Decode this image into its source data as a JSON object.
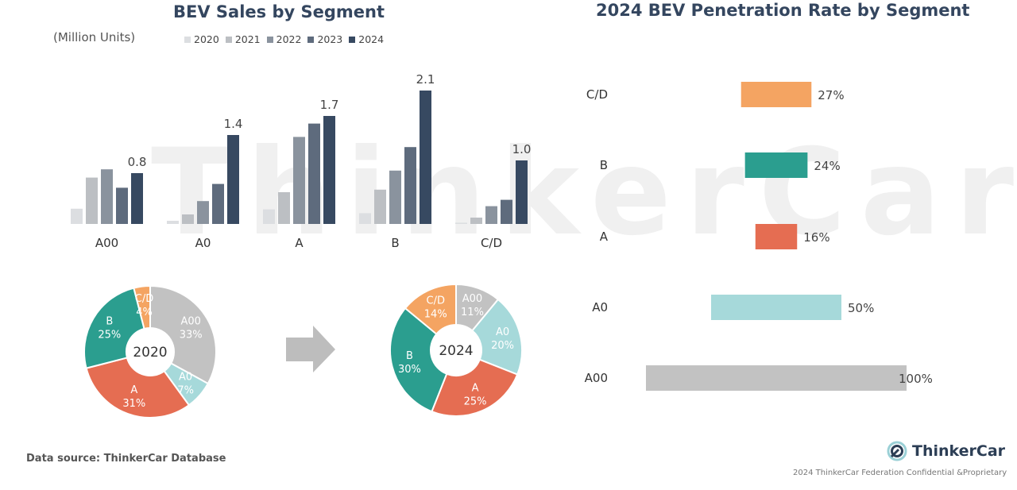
{
  "watermark": "ThinkerCar",
  "left_chart": {
    "title": "BEV Sales by Segment",
    "unit": "(Million Units)"
  },
  "right_chart": {
    "title": "2024 BEV Penetration Rate by Segment"
  },
  "source": "Data source: ThinkerCar Database",
  "brand": {
    "name": "ThinkerCar",
    "icon": "thinkercar-logo-icon"
  },
  "footer": "2024 ThinkerCar Federation Confidential &Proprietary",
  "arrow_icon": "right-arrow-icon",
  "colors": {
    "years": [
      "#dcdee1",
      "#bcbfc3",
      "#8a939e",
      "#5e6b7d",
      "#374961"
    ],
    "A00": "#c2c2c2",
    "A0": "#a6d9da",
    "A": "#e56d52",
    "B": "#2b9e8f",
    "C/D": "#f4a462"
  },
  "chart_data": [
    {
      "type": "bar",
      "title": "BEV Sales by Segment",
      "ylabel": "(Million Units)",
      "categories": [
        "A00",
        "A0",
        "A",
        "B",
        "C/D"
      ],
      "series": [
        {
          "name": "2020",
          "values": [
            0.24,
            0.05,
            0.23,
            0.17,
            0.02
          ]
        },
        {
          "name": "2021",
          "values": [
            0.73,
            0.15,
            0.5,
            0.54,
            0.1
          ]
        },
        {
          "name": "2022",
          "values": [
            0.86,
            0.36,
            1.37,
            0.84,
            0.28
          ]
        },
        {
          "name": "2023",
          "values": [
            0.57,
            0.63,
            1.58,
            1.21,
            0.38
          ]
        },
        {
          "name": "2024",
          "values": [
            0.8,
            1.4,
            1.7,
            2.1,
            1.0
          ]
        }
      ],
      "data_labels": {
        "series": "2024",
        "labels": [
          "0.8",
          "1.4",
          "1.7",
          "2.1",
          "1.0"
        ]
      },
      "ylim": [
        0,
        2.2
      ],
      "legend": "top",
      "grid": false
    },
    {
      "type": "pie",
      "center_label": "2020",
      "slices": [
        {
          "label": "A00",
          "value": 33,
          "text": "33%"
        },
        {
          "label": "A0",
          "value": 7,
          "text": "7%"
        },
        {
          "label": "A",
          "value": 31,
          "text": "31%"
        },
        {
          "label": "B",
          "value": 25,
          "text": "25%"
        },
        {
          "label": "C/D",
          "value": 4,
          "text": "4%"
        }
      ]
    },
    {
      "type": "pie",
      "center_label": "2024",
      "slices": [
        {
          "label": "A00",
          "value": 11,
          "text": "11%"
        },
        {
          "label": "A0",
          "value": 20,
          "text": "20%"
        },
        {
          "label": "A",
          "value": 25,
          "text": "25%"
        },
        {
          "label": "B",
          "value": 30,
          "text": "30%"
        },
        {
          "label": "C/D",
          "value": 14,
          "text": "14%"
        }
      ]
    },
    {
      "type": "bar",
      "orientation": "horizontal",
      "title": "2024 BEV Penetration Rate by Segment",
      "categories": [
        "C/D",
        "B",
        "A",
        "A0",
        "A00"
      ],
      "values": [
        27,
        24,
        16,
        50,
        100
      ],
      "labels": [
        "27%",
        "24%",
        "16%",
        "50%",
        "100%"
      ],
      "xlim": [
        0,
        100
      ],
      "grid": false
    }
  ]
}
